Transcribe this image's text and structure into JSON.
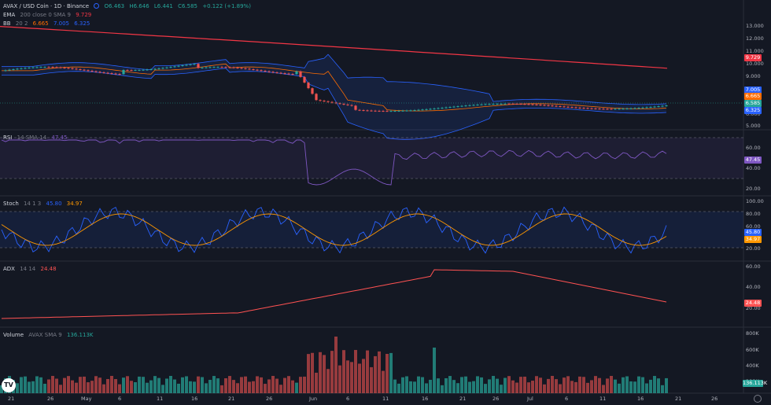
{
  "header": {
    "symbol": "AVAX / USD Coin · 1D · Binance",
    "open": "O6.463",
    "high": "H6.646",
    "low": "L6.441",
    "close": "C6.585",
    "change": "+0.122 (+1.89%)",
    "ema_label": "EMA",
    "ema_params": "200 close 0 SMA 9",
    "ema_value": "9.729",
    "bb_label": "BB",
    "bb_params": "20 2",
    "bb_v1": "6.665",
    "bb_v2": "7.005",
    "bb_v3": "6.325"
  },
  "price_axis": [
    "13.000",
    "12.000",
    "11.000",
    "10.000",
    "9.000",
    "8.000",
    "7.000",
    "6.000",
    "5.000"
  ],
  "price_tags": {
    "ema": "9.729",
    "bb_upper": "7.005",
    "bb_mid": "6.665",
    "last": "6.585",
    "bb_lower": "6.325"
  },
  "rsi": {
    "label": "RSI",
    "params": "14 SMA 14",
    "value": "47.45",
    "axis": [
      "60.00",
      "40.00",
      "20.00"
    ],
    "tag": "47.45"
  },
  "stoch": {
    "label": "Stoch",
    "params": "14 1 3",
    "k": "45.80",
    "d": "34.97",
    "axis": [
      "100.00",
      "80.00",
      "60.00",
      "20.00"
    ],
    "tag_k": "45.80",
    "tag_d": "34.97"
  },
  "adx": {
    "label": "ADX",
    "params": "14 14",
    "value": "24.48",
    "axis": [
      "60.00",
      "40.00",
      "20.00"
    ],
    "tag": "24.48"
  },
  "volume": {
    "label": "Volume",
    "params": "AVAX SMA 9",
    "value": "136.113K",
    "axis": [
      "800K",
      "600K",
      "400K",
      "200K"
    ],
    "tag": "136.113K"
  },
  "time_axis": [
    "21",
    "26",
    "May",
    "6",
    "11",
    "16",
    "21",
    "26",
    "Jun",
    "6",
    "11",
    "16",
    "21",
    "26",
    "Jul",
    "6",
    "11",
    "16",
    "21",
    "26"
  ],
  "colors": {
    "bg": "#141823",
    "up": "#26a69a",
    "down": "#ef5350",
    "ema": "#f23645",
    "bb": "#2962ff",
    "rsi": "#7e57c2",
    "stochK": "#2962ff",
    "stochD": "#ff9800",
    "adx": "#ff5252"
  },
  "icons": {
    "logo": "tradingview-logo",
    "settings": "gear-icon"
  },
  "chart_data": {
    "type": "candlestick",
    "title": "AVAX / USD Coin · 1D · Binance",
    "x_range": [
      "Apr 21",
      "Jul 26"
    ],
    "ylim": [
      5,
      13
    ],
    "series": [
      {
        "name": "EMA 200",
        "values": [
          12.75,
          12.5,
          12.3,
          12.1,
          11.8,
          11.5,
          11.1,
          10.8,
          10.5,
          10.2,
          9.9,
          9.73
        ]
      },
      {
        "name": "Price",
        "values": [
          9.3,
          9.4,
          9.6,
          9.9,
          9.5,
          9.3,
          9.2,
          8.6,
          7.1,
          6.6,
          6.0,
          6.3,
          6.2,
          6.6,
          6.8,
          6.5,
          6.6,
          6.58
        ]
      }
    ]
  }
}
